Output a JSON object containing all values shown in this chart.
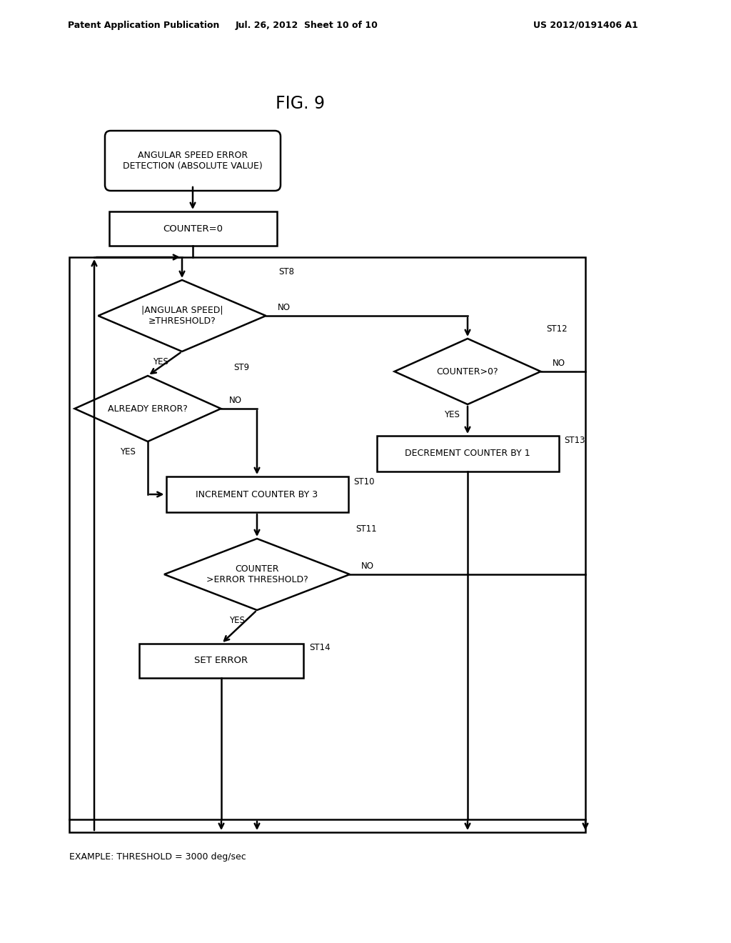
{
  "title": "FIG. 9",
  "header_left": "Patent Application Publication",
  "header_mid": "Jul. 26, 2012  Sheet 10 of 10",
  "header_right": "US 2012/0191406 A1",
  "footer": "EXAMPLE: THRESHOLD = 3000 deg/sec",
  "background_color": "#ffffff",
  "line_color": "#000000",
  "fig_width": 10.24,
  "fig_height": 13.2
}
